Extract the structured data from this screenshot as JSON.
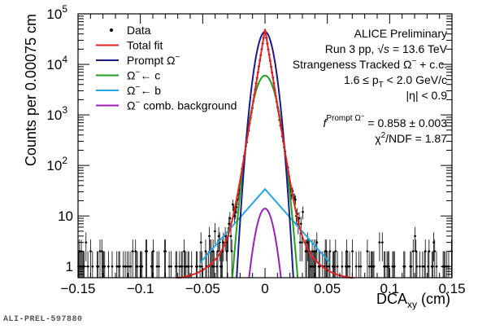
{
  "chart_data": {
    "type": "line",
    "xlabel": "DCA",
    "xlabel_sub": "xy",
    "xlabel_unit": " (cm)",
    "ylabel": "Counts per 0.00075 cm",
    "xlim": [
      -0.15,
      0.15
    ],
    "ylim": [
      0.6,
      100000
    ],
    "yscale": "log",
    "x_ticks": [
      "−0.15",
      "−0.1",
      "−0.05",
      "0",
      "0.05",
      "0.1",
      "0.15"
    ],
    "x_tick_values": [
      -0.15,
      -0.1,
      -0.05,
      0,
      0.05,
      0.1,
      0.15
    ],
    "y_ticks": [
      {
        "value": 1,
        "base": "1",
        "exp": ""
      },
      {
        "value": 10,
        "base": "10",
        "exp": ""
      },
      {
        "value": 100,
        "base": "10",
        "exp": "2"
      },
      {
        "value": 1000,
        "base": "10",
        "exp": "3"
      },
      {
        "value": 10000,
        "base": "10",
        "exp": "4"
      },
      {
        "value": 100000,
        "base": "10",
        "exp": "5"
      }
    ],
    "legend": [
      {
        "label": "Data",
        "color": "#000000",
        "marker": "point"
      },
      {
        "label": "Total fit",
        "color": "#e8201f",
        "marker": "line"
      },
      {
        "label": "Prompt Ω",
        "sup": "−",
        "color": "#1a1a8c",
        "marker": "line"
      },
      {
        "label": "Ω",
        "sup": "−",
        "tail": "← c",
        "color": "#1fa01f",
        "marker": "line"
      },
      {
        "label": "Ω",
        "sup": "−",
        "tail": "← b",
        "color": "#22a7e6",
        "marker": "line"
      },
      {
        "label": "Ω",
        "sup": "−",
        "tail": " comb. background",
        "color": "#9c1fb8",
        "marker": "line"
      }
    ],
    "annotations": {
      "line1": "ALICE Preliminary",
      "line2_pre": "Run 3 pp, ",
      "line2_sqrt": "√",
      "line2_s": "s",
      "line2_post": " = 13.6 TeV",
      "line3": "Strangeness Tracked Ω",
      "line3_sup": "−",
      "line3_post": " + c.c.",
      "line4": "1.6 ≤ p",
      "line4_sub": "T",
      "line4_post": " < 2.0 GeV/c",
      "line5": "|η| < 0.9",
      "line6_pre": "f",
      "line6_sup": "Prompt Ω",
      "line6_sup2": "−",
      "line6_post": " = 0.858 ± 0.003",
      "line7": "χ",
      "line7_sup": "2",
      "line7_post": "/NDF = 1.87"
    },
    "series": [
      {
        "name": "Total fit",
        "color": "#e8201f",
        "peak": 50000,
        "w_core": 0.00285,
        "amp_tail": 35,
        "w_tail": 0.0105,
        "floor": 0.55,
        "range": [
          -0.15,
          0.15
        ]
      },
      {
        "name": "Prompt Ω−",
        "color": "#1a1a8c",
        "peak": 44000,
        "sigma": 0.0048,
        "range": [
          -0.03,
          0.03
        ]
      },
      {
        "name": "Ω−← c",
        "color": "#1fa01f",
        "peak": 6000,
        "sigma": 0.0061,
        "range": [
          -0.033,
          0.033
        ]
      },
      {
        "name": "Ω−← b",
        "color": "#22a7e6",
        "peak": 34,
        "w_lap": 0.0155,
        "range": [
          -0.052,
          0.052
        ]
      },
      {
        "name": "Ω− comb. background",
        "color": "#9c1fb8",
        "peak": 14,
        "sigma": 0.0051,
        "range": [
          -0.02,
          0.02
        ]
      }
    ]
  },
  "footer": "ALI-PREL-597880"
}
